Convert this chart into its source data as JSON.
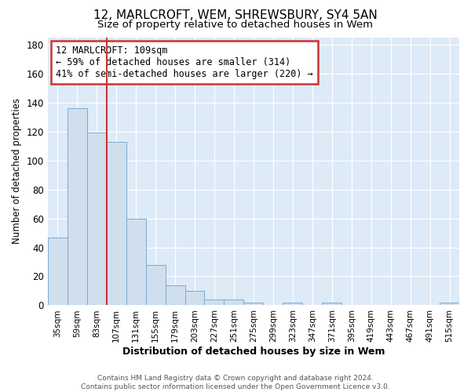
{
  "title": "12, MARLCROFT, WEM, SHREWSBURY, SY4 5AN",
  "subtitle": "Size of property relative to detached houses in Wem",
  "xlabel": "Distribution of detached houses by size in Wem",
  "ylabel": "Number of detached properties",
  "bar_labels": [
    "35sqm",
    "59sqm",
    "83sqm",
    "107sqm",
    "131sqm",
    "155sqm",
    "179sqm",
    "203sqm",
    "227sqm",
    "251sqm",
    "275sqm",
    "299sqm",
    "323sqm",
    "347sqm",
    "371sqm",
    "395sqm",
    "419sqm",
    "443sqm",
    "467sqm",
    "491sqm",
    "515sqm"
  ],
  "bar_values": [
    47,
    136,
    119,
    113,
    60,
    28,
    14,
    10,
    4,
    4,
    2,
    0,
    2,
    0,
    2,
    0,
    0,
    0,
    0,
    0,
    2
  ],
  "property_label": "12 MARLCROFT: 109sqm",
  "annotation_line1": "← 59% of detached houses are smaller (314)",
  "annotation_line2": "41% of semi-detached houses are larger (220) →",
  "bar_color": "#cfdfee",
  "bar_edge_color": "#7aaad0",
  "vline_color": "#cc3333",
  "vline_x": 2.5,
  "annotation_box_edge_color": "#cc3333",
  "footer_text": "Contains HM Land Registry data © Crown copyright and database right 2024.\nContains public sector information licensed under the Open Government Licence v3.0.",
  "ylim": [
    0,
    185
  ],
  "yticks": [
    0,
    20,
    40,
    60,
    80,
    100,
    120,
    140,
    160,
    180
  ],
  "background_color": "#ddeaf7",
  "plot_bg_color": "#ddeaf7",
  "title_fontsize": 11,
  "subtitle_fontsize": 9.5,
  "xlabel_fontsize": 9,
  "ylabel_fontsize": 8.5
}
